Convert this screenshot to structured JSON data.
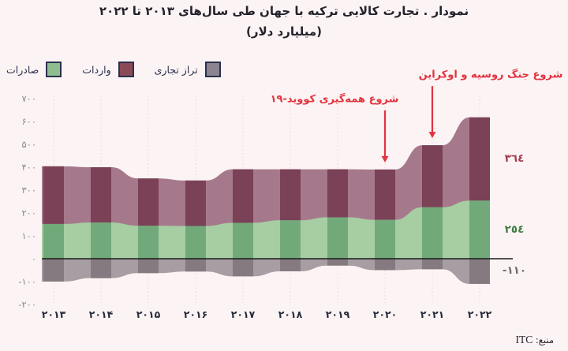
{
  "title": {
    "line1": "نمودار . تجارت کالایی ترکیه با جهان طی سال‌های ۲۰۱۳ تا ۲۰۲۲",
    "line2": "(میلیارد دلار)"
  },
  "legend": {
    "items": [
      {
        "label": "صادرات",
        "color": "#8fbd8f"
      },
      {
        "label": "واردات",
        "color": "#8b4a55"
      },
      {
        "label": "تراز تجاری",
        "color": "#8c8490"
      }
    ],
    "swatch_border_color": "#2b3050"
  },
  "annotations": [
    {
      "text": "شروع همه‌گیری کووید-۱۹",
      "target_year": "۲۰۲۰",
      "target_year_index": 7,
      "color": "#e23440"
    },
    {
      "text": "شروع جنگ روسیه و اوکراین",
      "target_year": "۲۰۲۱",
      "target_year_index": 8,
      "color": "#e23440"
    }
  ],
  "source": {
    "label": "منبع:",
    "value": "ITC"
  },
  "chart_data": {
    "type": "area",
    "title": "تجارت کالایی ترکیه با جهان طی سال‌های ۲۰۱۳ تا ۲۰۲۲ (میلیارد دلار)",
    "categories": [
      2013,
      2014,
      2015,
      2016,
      2017,
      2018,
      2019,
      2020,
      2021,
      2022
    ],
    "category_labels": [
      "۲۰۱۳",
      "۲۰۱۴",
      "۲۰۱۵",
      "۲۰۱۶",
      "۲۰۱۷",
      "۲۰۱۸",
      "۲۰۱۹",
      "۲۰۲۰",
      "۲۰۲۱",
      "۲۰۲۲"
    ],
    "series": [
      {
        "name": "صادرات",
        "values": [
          152,
          158,
          144,
          143,
          157,
          168,
          181,
          170,
          225,
          254
        ],
        "area_color": "#a7cda3",
        "bar_color": "#72a97b",
        "label_color": "#3c7a3f"
      },
      {
        "name": "واردات",
        "values": [
          252,
          242,
          207,
          199,
          234,
          223,
          210,
          220,
          271,
          364
        ],
        "area_color": "#a5798b",
        "bar_color": "#7b4156",
        "label_color": "#a23b4d"
      },
      {
        "name": "تراز تجاری",
        "values": [
          -100,
          -85,
          -63,
          -56,
          -77,
          -55,
          -30,
          -50,
          -46,
          -110
        ],
        "area_color": "#a79ea3",
        "bar_color": "#847a80",
        "label_color": "#6f6a71"
      }
    ],
    "stacking": "imports stacked on top of exports above zero; trade balance drawn below zero",
    "end_labels": [
      {
        "series": "واردات",
        "text": "٣٦٤",
        "value": 364
      },
      {
        "series": "صادرات",
        "text": "٢٥٤",
        "value": 254
      },
      {
        "series": "تراز تجاری",
        "text": "-١١٠",
        "value": -110
      }
    ],
    "y_ticks": {
      "values": [
        700,
        600,
        500,
        400,
        300,
        200,
        100,
        0,
        -100,
        -200
      ],
      "labels": [
        "۷۰۰",
        "۶۰۰",
        "۵۰۰",
        "۴۰۰",
        "۳۰۰",
        "۲۰۰",
        "۱۰۰",
        "۰",
        "-۱۰۰",
        "-۲۰۰"
      ]
    },
    "ylim": [
      -200,
      700
    ],
    "grid": "dotted-vertical-per-year",
    "gridline_color": "#edd2d5",
    "zero_line_color": "#1b1b1b",
    "legend_position": "top-left"
  }
}
